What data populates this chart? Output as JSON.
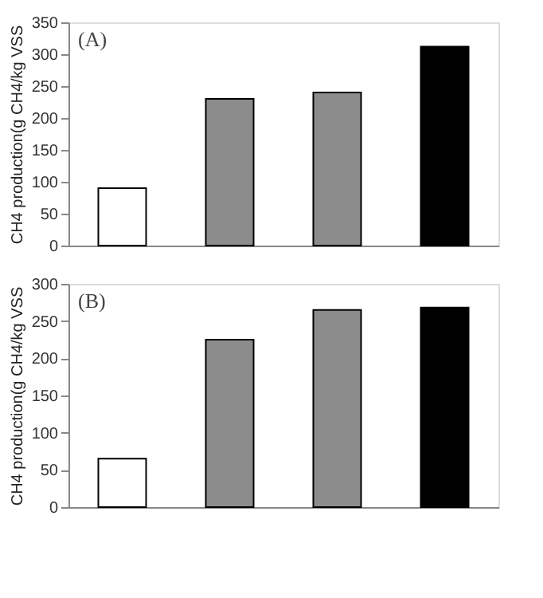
{
  "chart_data": [
    {
      "type": "bar",
      "categories": [
        null,
        null,
        null,
        null
      ],
      "values": [
        90,
        230,
        240,
        312
      ],
      "colors": [
        "#ffffff",
        "#8c8c8c",
        "#8c8c8c",
        "#000000"
      ],
      "ylim": [
        0,
        350
      ],
      "yticks": [
        0,
        50,
        100,
        150,
        200,
        250,
        300,
        350
      ],
      "ylabel": "CH4 production(g CH4/kg VSS",
      "annotations": [
        "(A)"
      ],
      "grid": false,
      "tick_labels": "y"
    },
    {
      "type": "bar",
      "categories": [
        null,
        null,
        null,
        null
      ],
      "values": [
        65,
        225,
        265,
        268
      ],
      "colors": [
        "#ffffff",
        "#8c8c8c",
        "#8c8c8c",
        "#000000"
      ],
      "ylim": [
        0,
        300
      ],
      "yticks": [
        0,
        50,
        100,
        150,
        200,
        250,
        300
      ],
      "ylabel": "CH4 production(g CH4/kg VSS",
      "annotations": [
        "(B)"
      ],
      "grid": false,
      "tick_labels": "y"
    }
  ]
}
